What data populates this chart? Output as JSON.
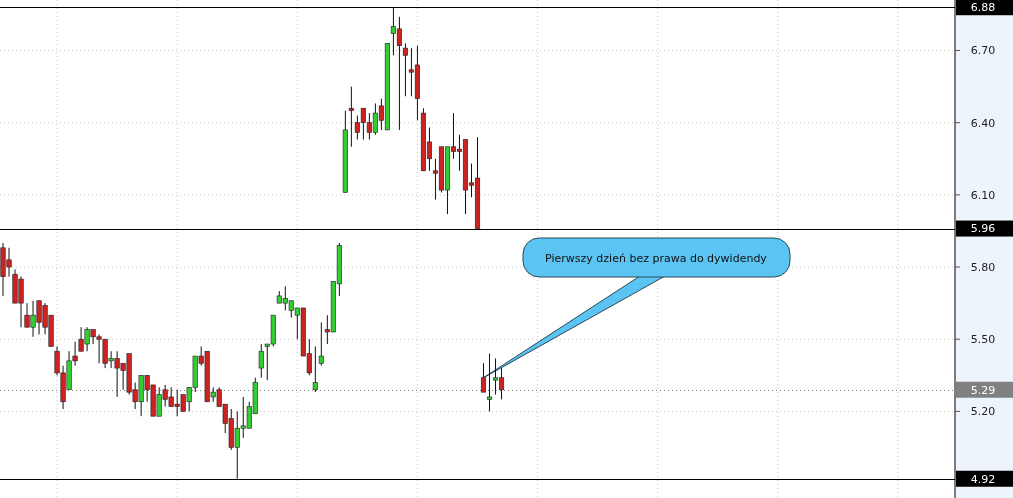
{
  "chart_data": {
    "type": "candlestick",
    "categories": [
      null,
      null,
      null,
      null,
      null,
      null,
      null,
      null,
      null,
      null,
      null,
      null,
      null,
      null,
      null,
      null,
      null,
      null,
      null,
      null,
      null,
      null,
      null,
      null,
      null,
      null,
      null,
      null,
      null,
      null,
      null,
      null,
      null,
      null,
      null,
      null,
      null,
      null,
      null,
      null,
      null,
      null,
      null,
      null,
      null,
      null,
      null,
      null,
      null,
      null,
      null,
      null,
      null,
      null,
      null,
      null,
      null,
      null,
      null,
      null,
      null,
      null,
      null,
      null,
      null,
      null,
      null,
      null,
      null,
      null,
      null,
      null,
      null,
      null,
      null,
      null,
      null,
      null,
      null,
      null,
      null,
      null,
      null,
      null,
      null,
      null,
      null,
      null,
      null,
      null,
      null,
      null,
      null,
      null,
      null,
      null,
      null,
      null,
      null,
      null,
      null,
      null,
      null,
      null,
      null,
      null,
      null,
      null,
      null,
      null,
      null,
      null,
      null,
      null,
      null,
      null,
      null,
      null,
      null,
      null,
      null,
      null,
      null,
      null,
      null,
      null,
      null,
      null,
      null,
      null,
      null,
      null,
      null,
      null,
      null,
      null,
      null,
      null,
      null,
      null,
      null,
      null,
      null,
      null,
      null,
      null,
      null,
      null,
      null,
      null,
      null,
      null,
      null,
      null,
      null,
      null,
      null,
      null,
      null
    ],
    "ohlc": [
      [
        5.88,
        5.9,
        5.68,
        5.76
      ],
      [
        5.83,
        5.88,
        5.76,
        5.8
      ],
      [
        5.77,
        5.79,
        5.65,
        5.65
      ],
      [
        5.75,
        5.76,
        5.55,
        5.65
      ],
      [
        5.6,
        5.65,
        5.55,
        5.55
      ],
      [
        5.55,
        5.66,
        5.51,
        5.6
      ],
      [
        5.66,
        5.66,
        5.52,
        5.57
      ],
      [
        5.64,
        5.65,
        5.52,
        5.55
      ],
      [
        5.6,
        5.6,
        5.47,
        5.47
      ],
      [
        5.45,
        5.47,
        5.35,
        5.36
      ],
      [
        5.36,
        5.39,
        5.21,
        5.24
      ],
      [
        5.29,
        5.45,
        5.29,
        5.41
      ],
      [
        5.43,
        5.49,
        5.39,
        5.41
      ],
      [
        5.5,
        5.55,
        5.45,
        5.45
      ],
      [
        5.48,
        5.55,
        5.45,
        5.54
      ],
      [
        5.54,
        5.54,
        5.48,
        5.51
      ],
      [
        5.51,
        5.52,
        5.4,
        5.5
      ],
      [
        5.5,
        5.5,
        5.38,
        5.4
      ],
      [
        5.41,
        5.45,
        5.38,
        5.42
      ],
      [
        5.42,
        5.45,
        5.26,
        5.38
      ],
      [
        5.4,
        5.4,
        5.29,
        5.37
      ],
      [
        5.44,
        5.44,
        5.27,
        5.28
      ],
      [
        5.29,
        5.32,
        5.21,
        5.24
      ],
      [
        5.24,
        5.35,
        5.18,
        5.35
      ],
      [
        5.35,
        5.35,
        5.24,
        5.29
      ],
      [
        5.31,
        5.31,
        5.18,
        5.18
      ],
      [
        5.18,
        5.3,
        5.18,
        5.27
      ],
      [
        5.29,
        5.31,
        5.22,
        5.25
      ],
      [
        5.26,
        5.3,
        5.22,
        5.22
      ],
      [
        5.23,
        5.29,
        5.18,
        5.22
      ],
      [
        5.27,
        5.27,
        5.2,
        5.2
      ],
      [
        5.24,
        5.3,
        5.2,
        5.3
      ],
      [
        5.3,
        5.43,
        5.28,
        5.43
      ],
      [
        5.43,
        5.47,
        5.39,
        5.4
      ],
      [
        5.45,
        5.45,
        5.24,
        5.24
      ],
      [
        5.26,
        5.3,
        5.24,
        5.28
      ],
      [
        5.29,
        5.3,
        5.22,
        5.22
      ],
      [
        5.23,
        5.23,
        5.11,
        5.15
      ],
      [
        5.17,
        5.21,
        5.04,
        5.05
      ],
      [
        5.05,
        5.2,
        4.92,
        5.13
      ],
      [
        5.13,
        5.26,
        5.09,
        5.14
      ],
      [
        5.13,
        5.24,
        5.13,
        5.22
      ],
      [
        5.19,
        5.34,
        5.19,
        5.32
      ],
      [
        5.38,
        5.48,
        5.34,
        5.45
      ],
      [
        5.47,
        5.48,
        5.33,
        5.48
      ],
      [
        5.48,
        5.6,
        5.47,
        5.6
      ],
      [
        5.65,
        5.7,
        5.65,
        5.68
      ],
      [
        5.65,
        5.72,
        5.62,
        5.67
      ],
      [
        5.62,
        5.66,
        5.59,
        5.66
      ],
      [
        5.6,
        5.63,
        5.5,
        5.63
      ],
      [
        5.63,
        5.63,
        5.43,
        5.43
      ],
      [
        5.44,
        5.5,
        5.35,
        5.36
      ],
      [
        5.29,
        5.47,
        5.28,
        5.32
      ],
      [
        5.4,
        5.57,
        5.39,
        5.43
      ],
      [
        5.54,
        5.6,
        5.48,
        5.53
      ],
      [
        5.53,
        5.74,
        5.53,
        5.74
      ],
      [
        5.73,
        5.9,
        5.68,
        5.89
      ],
      [
        6.11,
        6.45,
        6.11,
        6.37
      ],
      [
        6.46,
        6.55,
        6.3,
        6.45
      ],
      [
        6.4,
        6.43,
        6.33,
        6.36
      ],
      [
        6.46,
        6.46,
        6.33,
        6.4
      ],
      [
        6.4,
        6.44,
        6.33,
        6.36
      ],
      [
        6.36,
        6.48,
        6.35,
        6.44
      ],
      [
        6.47,
        6.5,
        6.37,
        6.41
      ],
      [
        6.37,
        6.73,
        6.37,
        6.73
      ],
      [
        6.77,
        6.88,
        6.68,
        6.8
      ],
      [
        6.79,
        6.84,
        6.37,
        6.72
      ],
      [
        6.71,
        6.73,
        6.51,
        6.68
      ],
      [
        6.62,
        6.71,
        6.51,
        6.61
      ],
      [
        6.64,
        6.72,
        6.41,
        6.5
      ],
      [
        6.44,
        6.46,
        6.2,
        6.2
      ],
      [
        6.32,
        6.38,
        6.2,
        6.25
      ],
      [
        6.2,
        6.25,
        6.08,
        6.19
      ],
      [
        6.3,
        6.3,
        6.11,
        6.12
      ],
      [
        6.12,
        6.3,
        6.02,
        6.3
      ],
      [
        6.3,
        6.44,
        6.25,
        6.28
      ],
      [
        6.29,
        6.35,
        6.2,
        6.28
      ],
      [
        6.33,
        6.33,
        6.02,
        6.12
      ],
      [
        6.15,
        6.23,
        6.09,
        6.14
      ],
      [
        6.17,
        6.34,
        5.96,
        5.96
      ],
      [
        5.34,
        5.4,
        5.28,
        5.28
      ],
      [
        5.25,
        5.44,
        5.2,
        5.26
      ],
      [
        5.33,
        5.42,
        5.27,
        5.34
      ],
      [
        5.34,
        5.38,
        5.25,
        5.29
      ],
      null,
      null,
      null,
      null,
      null,
      null,
      null,
      null,
      null,
      null,
      null,
      null,
      null,
      null,
      null,
      null,
      null,
      null,
      null,
      null,
      null,
      null,
      null,
      null,
      null,
      null,
      null,
      null,
      null,
      null,
      null,
      null,
      null,
      null,
      null,
      null,
      null,
      null,
      null,
      null,
      null,
      null,
      null,
      null,
      null,
      null,
      null,
      null,
      null,
      null,
      null,
      null,
      null,
      null,
      null,
      null,
      null,
      null,
      null,
      null,
      null,
      null,
      null,
      null,
      null,
      null,
      null,
      null,
      null,
      null,
      null,
      null,
      null,
      null,
      null
    ],
    "colors": [
      "#cc2222",
      "#cc2222",
      "#cc2222",
      "#cc2222",
      "#cc2222",
      "#33cc33",
      "#cc2222",
      "#cc2222",
      "#cc2222",
      "#cc2222",
      "#cc2222",
      "#33cc33",
      "#cc2222",
      "#cc2222",
      "#33cc33",
      "#cc2222",
      "#cc2222",
      "#cc2222",
      "#33cc33",
      "#cc2222",
      "#cc2222",
      "#cc2222",
      "#cc2222",
      "#33cc33",
      "#cc2222",
      "#cc2222",
      "#33cc33",
      "#cc2222",
      "#cc2222",
      "#cc2222",
      "#cc2222",
      "#33cc33",
      "#33cc33",
      "#cc2222",
      "#cc2222",
      "#33cc33",
      "#cc2222",
      "#cc2222",
      "#cc2222",
      "#33cc33",
      "#33cc33",
      "#33cc33",
      "#33cc33",
      "#33cc33",
      "#33cc33",
      "#33cc33",
      "#33cc33",
      "#33cc33",
      "#33cc33",
      "#33cc33",
      "#cc2222",
      "#cc2222",
      "#33cc33",
      "#33cc33",
      "#cc2222",
      "#33cc33",
      "#33cc33",
      "#33cc33",
      "#cc2222",
      "#cc2222",
      "#cc2222",
      "#cc2222",
      "#33cc33",
      "#cc2222",
      "#33cc33",
      "#33cc33",
      "#cc2222",
      "#cc2222",
      "#cc2222",
      "#cc2222",
      "#cc2222",
      "#cc2222",
      "#cc2222",
      "#cc2222",
      "#33cc33",
      "#cc2222",
      "#cc2222",
      "#cc2222",
      "#cc2222",
      "#cc2222",
      "#cc2222",
      "#33cc33",
      "#33cc33",
      "#cc2222",
      null,
      null,
      null,
      null,
      null,
      null,
      null,
      null,
      null,
      null,
      null,
      null,
      null,
      null,
      null,
      null,
      null,
      null,
      null,
      null,
      null,
      null,
      null,
      null,
      null,
      null,
      null,
      null,
      null,
      null,
      null,
      null,
      null,
      null,
      null,
      null,
      null,
      null,
      null,
      null,
      null,
      null,
      null,
      null,
      null,
      null,
      null,
      null,
      null,
      null,
      null,
      null,
      null,
      null,
      null,
      null,
      null,
      null,
      null,
      null,
      null,
      null,
      null,
      null,
      null,
      null,
      null,
      null,
      null,
      null,
      null,
      null,
      null,
      null,
      null
    ],
    "ylim": [
      4.84,
      6.91
    ],
    "yticks": [
      {
        "value": 5.2,
        "label": "5.20"
      },
      {
        "value": 5.5,
        "label": "5.50"
      },
      {
        "value": 5.8,
        "label": "5.80"
      },
      {
        "value": 6.1,
        "label": "6.10"
      },
      {
        "value": 6.4,
        "label": "6.40"
      },
      {
        "value": 6.7,
        "label": "6.70"
      }
    ],
    "grid": true,
    "ref_lines": [
      {
        "axis": "y",
        "value": 6.88,
        "label": "6.88",
        "color": "#000000"
      },
      {
        "axis": "y",
        "value": 5.96,
        "label": "5.96",
        "color": "#000000"
      },
      {
        "axis": "y",
        "value": 5.29,
        "label": "5.29",
        "color": "#808080",
        "line_style": "dotted"
      },
      {
        "axis": "y",
        "value": 4.92,
        "label": "4.92",
        "color": "#000000"
      }
    ],
    "annotations": [
      "Pierwszy dzień bez prawa do dywidendy"
    ]
  }
}
